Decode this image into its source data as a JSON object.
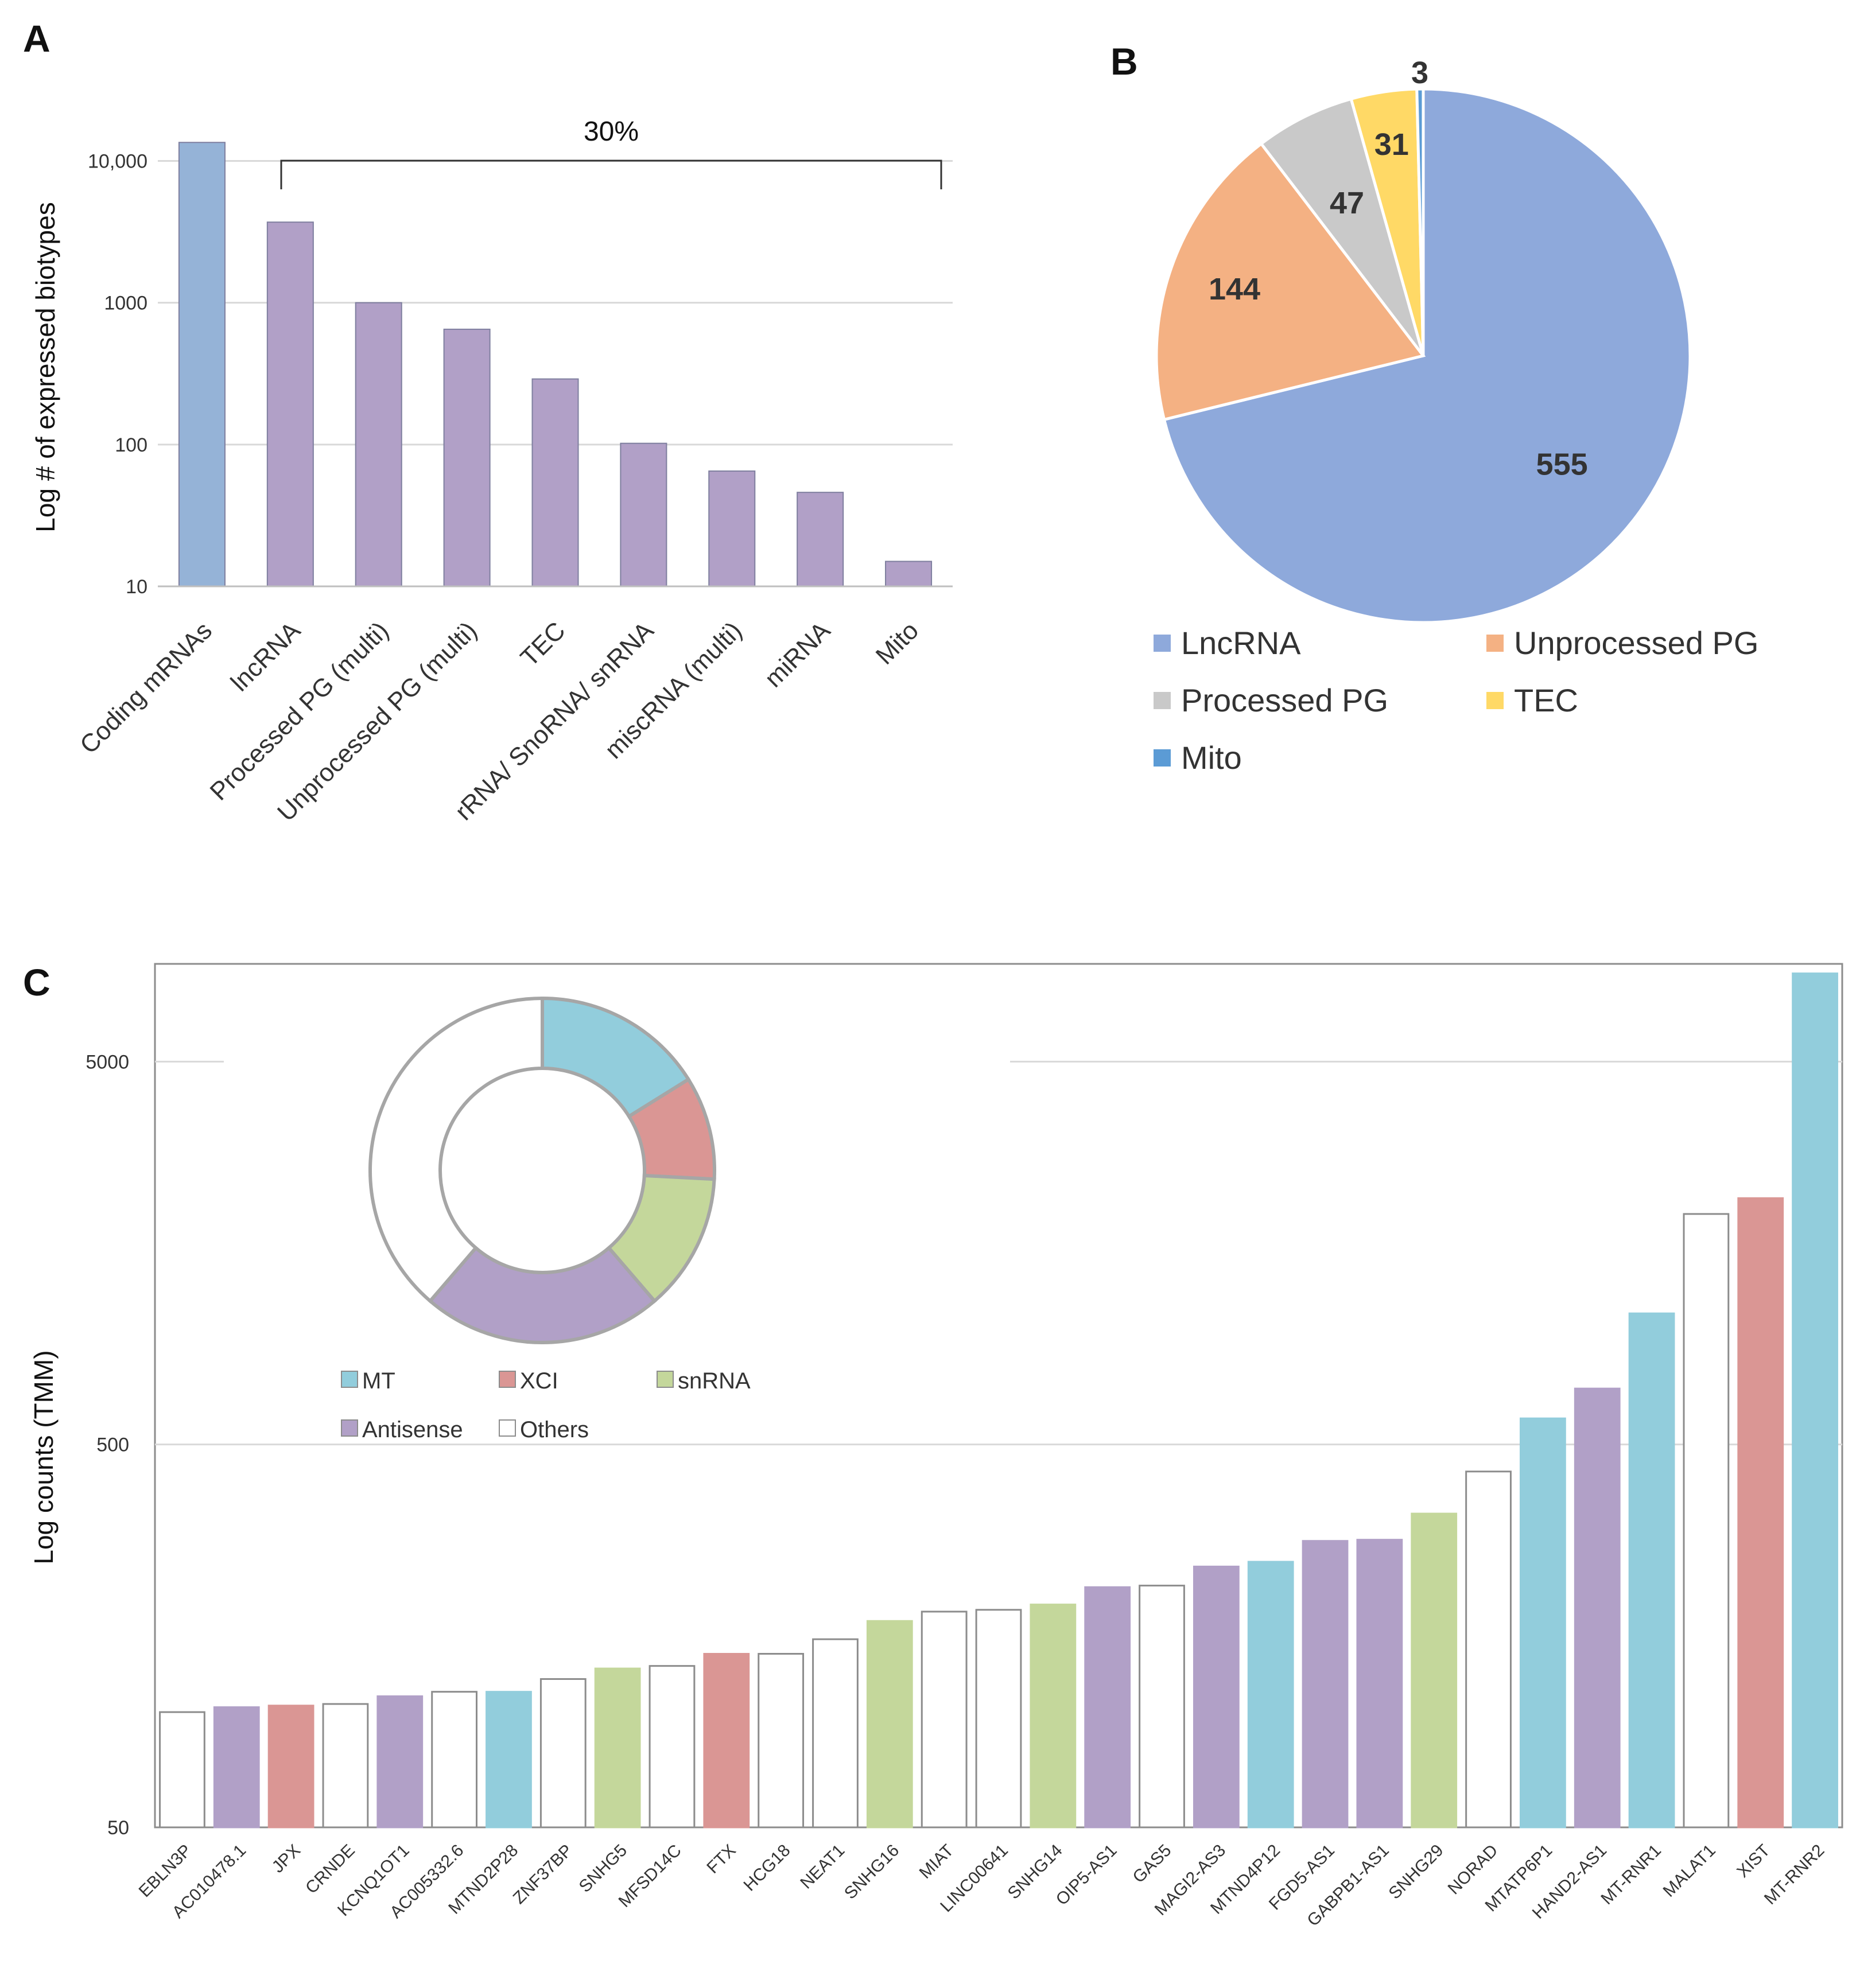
{
  "panels": {
    "a": "A",
    "b": "B",
    "c": "C"
  },
  "chart_data": [
    {
      "id": "A",
      "type": "bar",
      "scale": "log",
      "ylabel": "Log # of expressed  biotypes",
      "ylim": [
        10,
        16000
      ],
      "yticks": [
        10,
        100,
        1000,
        10000
      ],
      "ytick_labels": [
        "10",
        "100",
        "1000",
        "10,000"
      ],
      "categories": [
        "Coding mRNAs",
        "lncRNA",
        "Processed PG (multi)",
        "Unprocessed PG (multi)",
        "TEC",
        "rRNA/ SnoRNA/ snRNA",
        "miscRNA (multi)",
        "miRNA",
        "Mito"
      ],
      "values": [
        13500,
        3700,
        1000,
        650,
        290,
        102,
        65,
        46,
        15
      ],
      "colors": [
        "#95B3D7",
        "#B1A0C7",
        "#B1A0C7",
        "#B1A0C7",
        "#B1A0C7",
        "#B1A0C7",
        "#B1A0C7",
        "#B1A0C7",
        "#B1A0C7"
      ],
      "annotation": "30%"
    },
    {
      "id": "B",
      "type": "pie",
      "labels": [
        "LncRNA",
        "Unprocessed PG",
        "Processed PG",
        "TEC",
        "Mito"
      ],
      "values": [
        555,
        144,
        47,
        31,
        3
      ],
      "value_labels": [
        "555",
        "144",
        "47",
        "31",
        "3"
      ],
      "colors": [
        "#8EA9DB",
        "#F4B183",
        "#C9C9C9",
        "#FFD966",
        "#5B9BD5"
      ]
    },
    {
      "id": "C",
      "type": "bar",
      "scale": "log",
      "ylabel": "Log counts (TMM)",
      "ylim": [
        50,
        9000
      ],
      "yticks": [
        50,
        500,
        5000
      ],
      "ytick_labels": [
        "50",
        "500",
        "5000"
      ],
      "categories": [
        "EBLN3P",
        "AC010478.1",
        "JPX",
        "CRNDE",
        "KCNQ1OT1",
        "AC005332.6",
        "MTND2P28",
        "ZNF37BP",
        "SNHG5",
        "MFSD14C",
        "FTX",
        "HCG18",
        "NEAT1",
        "SNHG16",
        "MIAT",
        "LINC00641",
        "SNHG14",
        "OIP5-AS1",
        "GAS5",
        "MAGI2-AS3",
        "MTND4P12",
        "FGD5-AS1",
        "GABPB1-AS1",
        "SNHG29",
        "NORAD",
        "MTATP6P1",
        "HAND2-AS1",
        "MT-RNR1",
        "MALAT1",
        "XIST",
        "MT-RNR2"
      ],
      "values": [
        100,
        103,
        104,
        105,
        110,
        113,
        113,
        122,
        130,
        132,
        142,
        142,
        155,
        173,
        183,
        185,
        191,
        212,
        214,
        240,
        247,
        280,
        282,
        330,
        425,
        585,
        700,
        1100,
        2000,
        2200,
        8500
      ],
      "groups": [
        "Others",
        "Antisense",
        "XCI",
        "Others",
        "Antisense",
        "Others",
        "MT",
        "Others",
        "snRNA",
        "Others",
        "XCI",
        "Others",
        "Others",
        "snRNA",
        "Others",
        "Others",
        "snRNA",
        "Antisense",
        "Others",
        "Antisense",
        "MT",
        "Antisense",
        "Antisense",
        "snRNA",
        "Others",
        "MT",
        "Antisense",
        "MT",
        "Others",
        "XCI",
        "MT"
      ],
      "group_colors": {
        "MT": "#92CDDC",
        "XCI": "#DA9694",
        "snRNA": "#C4D79B",
        "Antisense": "#B1A0C7",
        "Others": "#FFFFFF"
      },
      "inset_donut": {
        "labels": [
          "MT",
          "XCI",
          "snRNA",
          "Antisense",
          "Others"
        ],
        "values": [
          5,
          3,
          4,
          7,
          12
        ],
        "colors": [
          "#92CDDC",
          "#DA9694",
          "#C4D79B",
          "#B1A0C7",
          "#FFFFFF"
        ]
      }
    }
  ]
}
